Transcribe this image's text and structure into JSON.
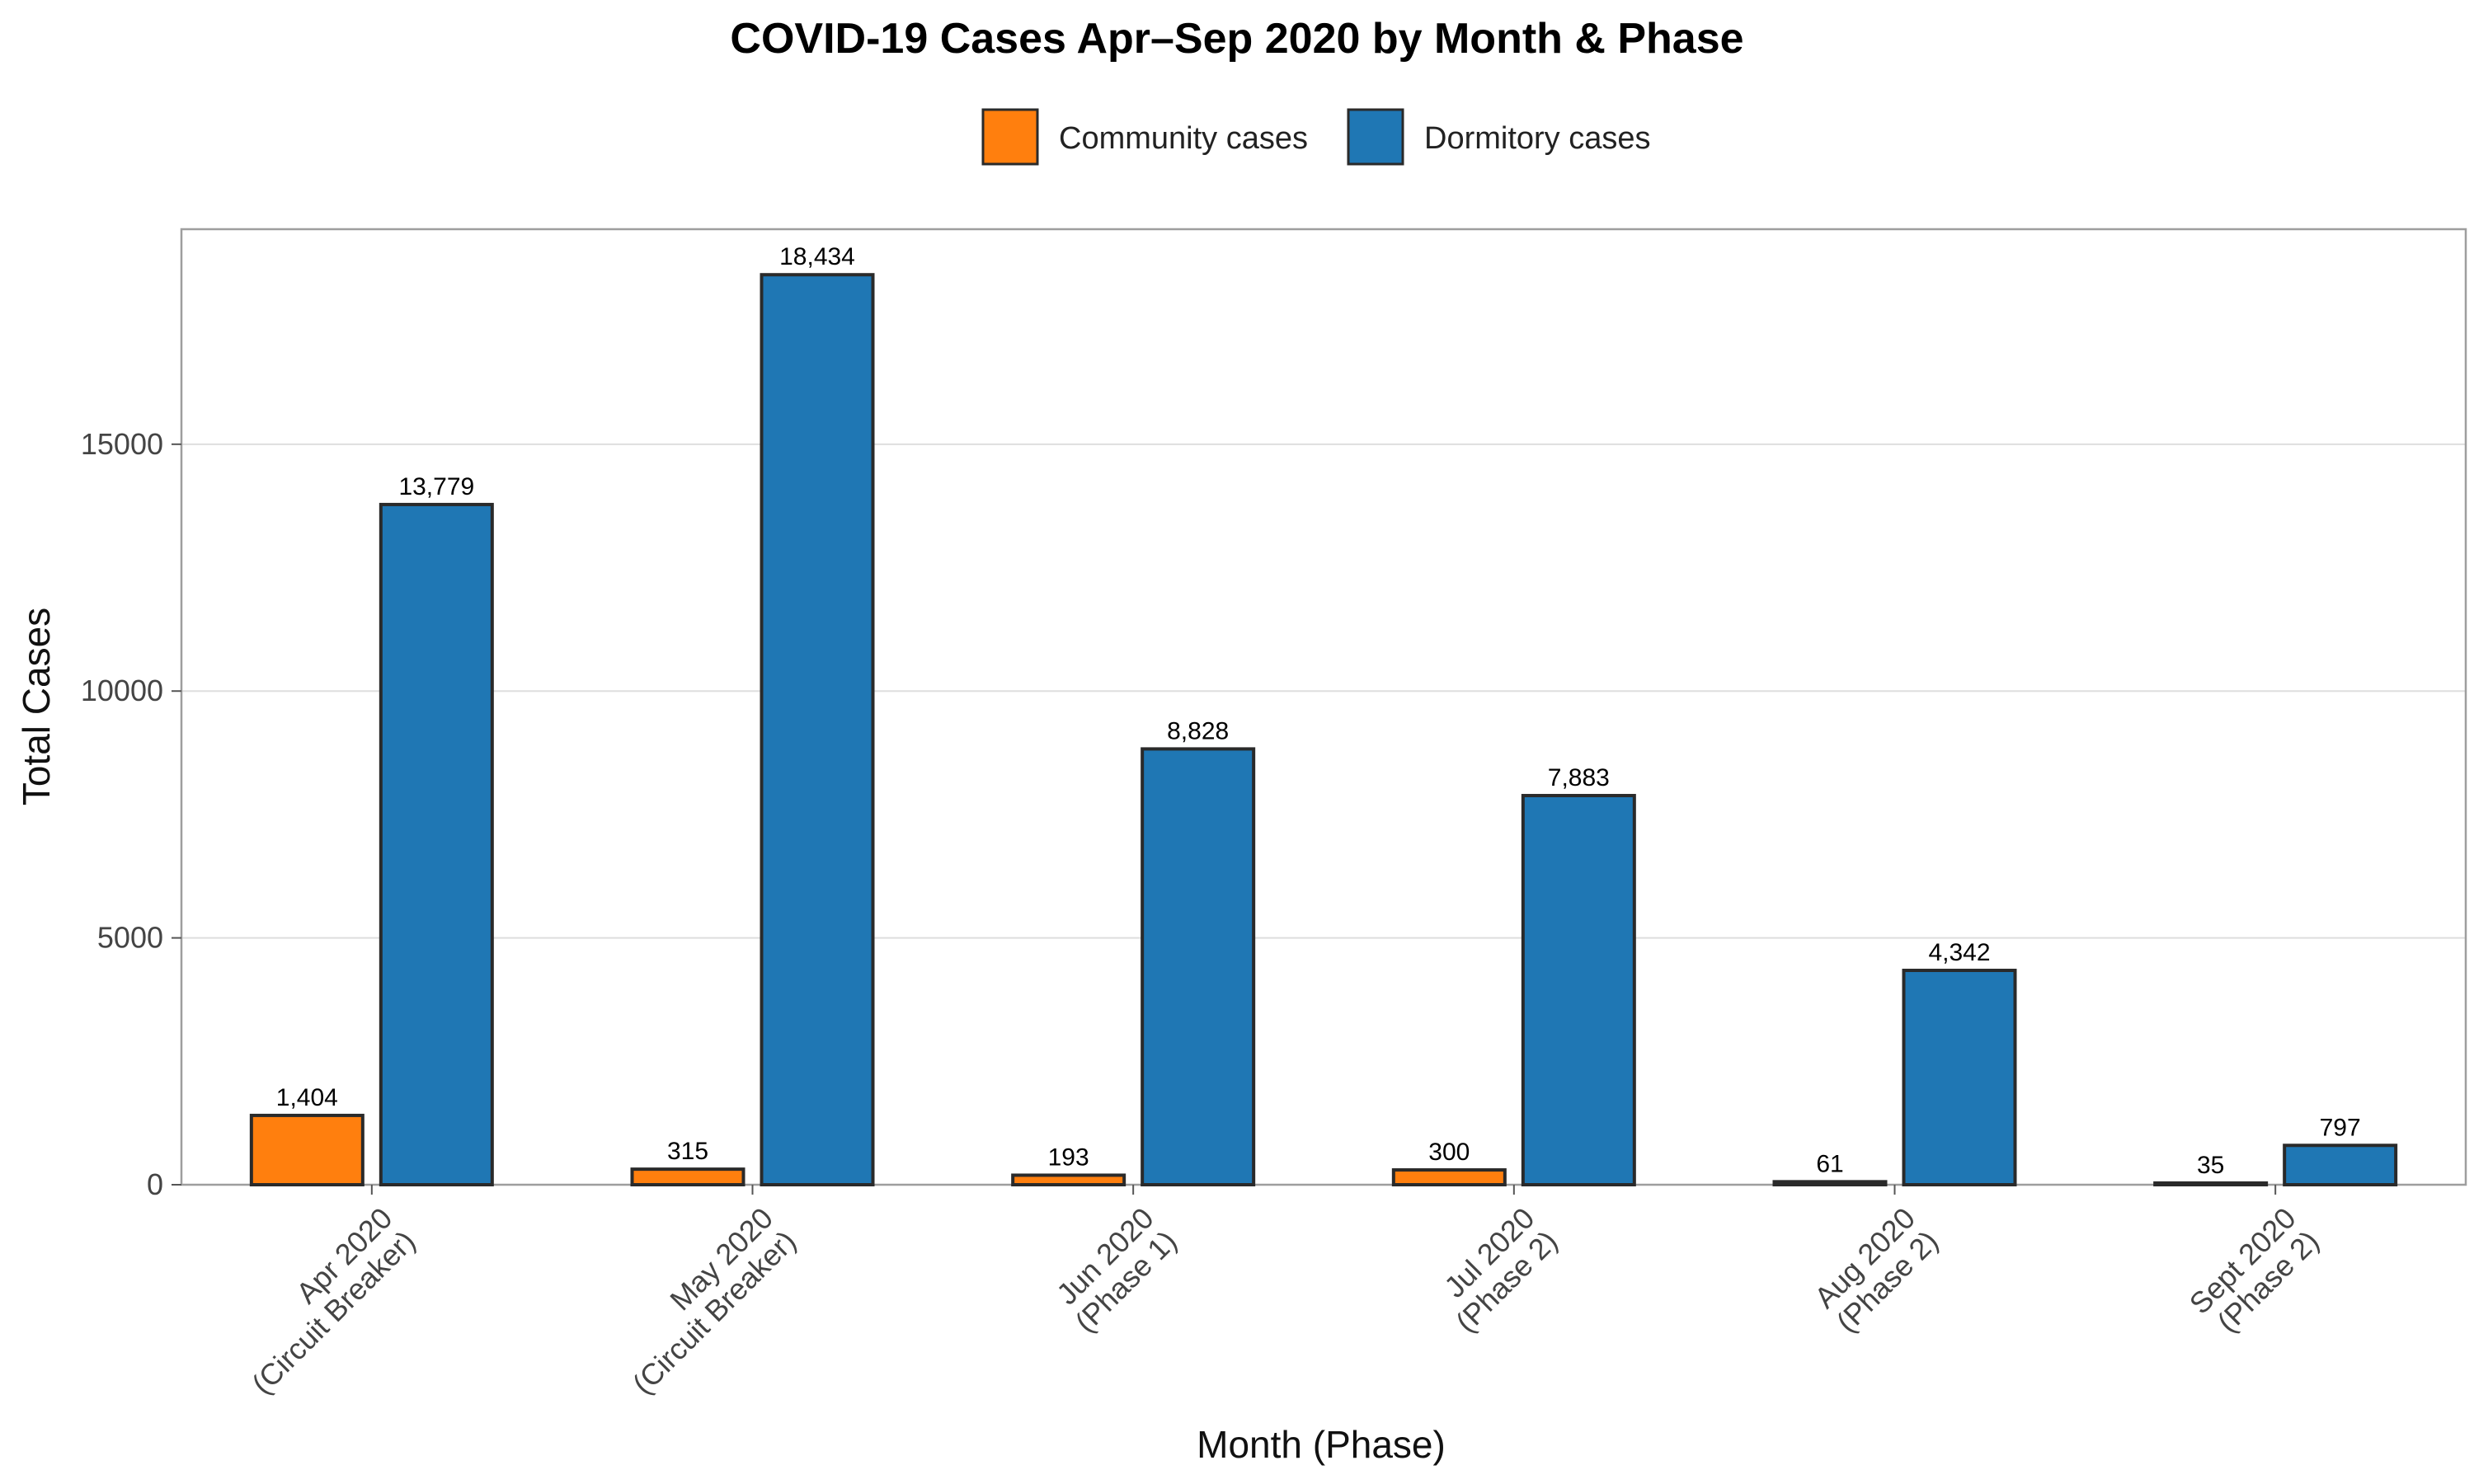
{
  "chart_data": {
    "type": "bar",
    "title": "COVID-19 Cases Apr–Sep 2020 by Month & Phase",
    "xlabel": "Month (Phase)",
    "ylabel": "Total Cases",
    "categories": [
      [
        "Apr 2020",
        "(Circuit Breaker)"
      ],
      [
        "May 2020",
        "(Circuit Breaker)"
      ],
      [
        "Jun 2020",
        "(Phase 1)"
      ],
      [
        "Jul 2020",
        "(Phase 2)"
      ],
      [
        "Aug 2020",
        "(Phase 2)"
      ],
      [
        "Sept 2020",
        "(Phase 2)"
      ]
    ],
    "series": [
      {
        "name": "Community cases",
        "color": "#ff7f0e",
        "values": [
          1404,
          315,
          193,
          300,
          61,
          35
        ],
        "labels": [
          "1,404",
          "315",
          "193",
          "300",
          "61",
          "35"
        ]
      },
      {
        "name": "Dormitory cases",
        "color": "#1f77b4",
        "values": [
          13779,
          18434,
          8828,
          7883,
          4342,
          797
        ],
        "labels": [
          "13,779",
          "18,434",
          "8,828",
          "7,883",
          "4,342",
          "797"
        ]
      }
    ],
    "yticks": [
      0,
      5000,
      10000,
      15000
    ],
    "ylim": [
      0,
      19356
    ],
    "grid": true,
    "legend_position": "top-center"
  }
}
